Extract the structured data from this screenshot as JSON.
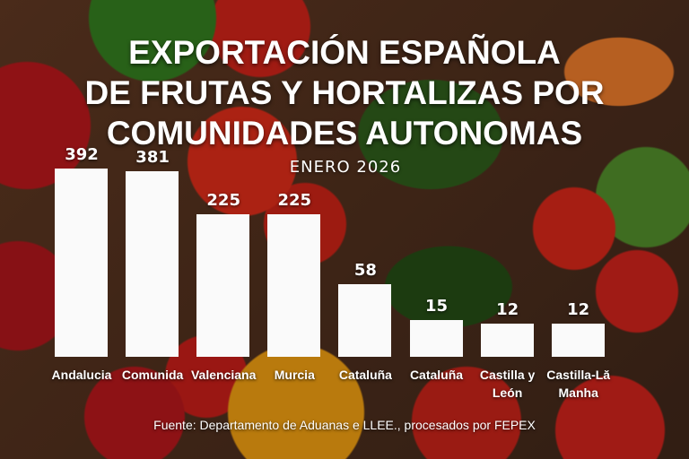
{
  "chart_data": {
    "type": "bar",
    "title": "EXPORTACIÓN ESPAÑOLA DE FRUTAS Y HORTALIZAS POR COMUNIDADES AUTONOMAS",
    "title_lines": [
      "EXPORTACIÓN ESPAÑOLA",
      "DE FRUTAS Y HORTALIZAS POR",
      "COMUNIDADES AUTONOMAS"
    ],
    "subtitle": "ENERO 2026",
    "categories": [
      "Andalucia",
      "Comunida",
      "Valenciana",
      "Murcia",
      "Cataluña",
      "Cataluña",
      "Castilla y León",
      "Castilla-Lă Manha"
    ],
    "values": [
      392,
      381,
      225,
      225,
      58,
      15,
      12,
      12
    ],
    "source": "Fuente: Departamento de Aduanas e LLEE., procesados por FEPEX",
    "bar_color": "#fafafa",
    "grid": false
  }
}
